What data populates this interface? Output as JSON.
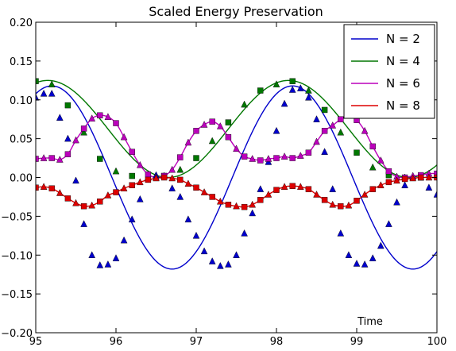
{
  "chart_data": {
    "type": "line",
    "title": "Scaled Energy Preservation",
    "xlabel": "Time",
    "ylabel": "",
    "xlim": [
      95,
      100
    ],
    "ylim": [
      -0.2,
      0.2
    ],
    "xticks": [
      "95",
      "96",
      "97",
      "98",
      "99",
      "100"
    ],
    "yticks": [
      "0.20",
      "0.15",
      "0.10",
      "0.05",
      "0.00",
      "−0.05",
      "−0.10",
      "−0.15",
      "−0.20"
    ],
    "grid": false,
    "legend_position": "top-right",
    "legend": [
      "N = 2",
      "N = 4",
      "N = 6",
      "N = 8"
    ],
    "series": [
      {
        "name": "N = 2",
        "color": "#0000cc",
        "marker": "triangle",
        "curve": {
          "formula": "amp*cos(2*pi*(t-phase)/period)",
          "amp": 0.118,
          "period": 3.0,
          "phase": 95.2
        },
        "marker_points": [
          [
            95.0,
            0.103
          ],
          [
            95.1,
            0.108
          ],
          [
            95.2,
            0.108
          ],
          [
            95.3,
            0.077
          ],
          [
            95.4,
            0.05
          ],
          [
            95.5,
            -0.004
          ],
          [
            95.6,
            -0.06
          ],
          [
            95.7,
            -0.1
          ],
          [
            95.8,
            -0.113
          ],
          [
            95.9,
            -0.112
          ],
          [
            96.0,
            -0.104
          ],
          [
            96.1,
            -0.081
          ],
          [
            96.2,
            -0.054
          ],
          [
            96.3,
            -0.028
          ],
          [
            96.4,
            0.0
          ],
          [
            96.5,
            0.003
          ],
          [
            96.6,
            0.002
          ],
          [
            96.7,
            -0.014
          ],
          [
            96.8,
            -0.025
          ],
          [
            96.9,
            -0.054
          ],
          [
            97.0,
            -0.075
          ],
          [
            97.1,
            -0.095
          ],
          [
            97.2,
            -0.108
          ],
          [
            97.3,
            -0.114
          ],
          [
            97.4,
            -0.112
          ],
          [
            97.5,
            -0.1
          ],
          [
            97.6,
            -0.072
          ],
          [
            97.7,
            -0.046
          ],
          [
            97.8,
            -0.015
          ],
          [
            97.9,
            0.02
          ],
          [
            98.0,
            0.06
          ],
          [
            98.1,
            0.095
          ],
          [
            98.2,
            0.113
          ],
          [
            98.3,
            0.115
          ],
          [
            98.4,
            0.103
          ],
          [
            98.5,
            0.075
          ],
          [
            98.6,
            0.033
          ],
          [
            98.7,
            -0.015
          ],
          [
            98.8,
            -0.072
          ],
          [
            98.9,
            -0.1
          ],
          [
            99.0,
            -0.111
          ],
          [
            99.1,
            -0.112
          ],
          [
            99.2,
            -0.104
          ],
          [
            99.3,
            -0.088
          ],
          [
            99.4,
            -0.06
          ],
          [
            99.5,
            -0.032
          ],
          [
            99.6,
            -0.01
          ],
          [
            99.7,
            0.001
          ],
          [
            99.8,
            0.0
          ],
          [
            99.9,
            -0.013
          ],
          [
            100.0,
            -0.022
          ]
        ]
      },
      {
        "name": "N = 4",
        "color": "#007700",
        "marker": "square",
        "curve": {
          "formula": "(amp/2)*(1+cos(2*pi*(t-phase)/period))",
          "amp": 0.125,
          "period": 3.0,
          "phase": 95.2
        },
        "marker_points": [
          [
            95.0,
            0.124
          ],
          [
            95.2,
            0.12
          ],
          [
            95.4,
            0.093
          ],
          [
            95.6,
            0.058
          ],
          [
            95.8,
            0.024
          ],
          [
            96.0,
            0.008
          ],
          [
            96.2,
            0.002
          ],
          [
            96.4,
            0.0
          ],
          [
            96.6,
            0.002
          ],
          [
            96.8,
            0.01
          ],
          [
            97.0,
            0.025
          ],
          [
            97.2,
            0.047
          ],
          [
            97.4,
            0.071
          ],
          [
            97.6,
            0.094
          ],
          [
            97.8,
            0.112
          ],
          [
            98.0,
            0.12
          ],
          [
            98.2,
            0.124
          ],
          [
            98.4,
            0.112
          ],
          [
            98.6,
            0.087
          ],
          [
            98.8,
            0.058
          ],
          [
            99.0,
            0.032
          ],
          [
            99.2,
            0.013
          ],
          [
            99.4,
            0.003
          ],
          [
            99.6,
            0.0
          ],
          [
            99.8,
            0.0
          ],
          [
            100.0,
            0.003
          ]
        ]
      },
      {
        "name": "N = 6",
        "color": "#bb00bb",
        "marker": "square",
        "curve": {
          "formula": "amp*sin(pi*(t-95.3)/(0.85*1.5))^2 smoothed",
          "amp": 0.078
        },
        "marker_points": [
          [
            95.0,
            0.024
          ],
          [
            95.1,
            0.025
          ],
          [
            95.2,
            0.025
          ],
          [
            95.3,
            0.023
          ],
          [
            95.4,
            0.03
          ],
          [
            95.5,
            0.048
          ],
          [
            95.6,
            0.063
          ],
          [
            95.7,
            0.076
          ],
          [
            95.8,
            0.08
          ],
          [
            95.9,
            0.078
          ],
          [
            96.0,
            0.07
          ],
          [
            96.1,
            0.052
          ],
          [
            96.2,
            0.033
          ],
          [
            96.3,
            0.016
          ],
          [
            96.4,
            0.004
          ],
          [
            96.5,
            0.0
          ],
          [
            96.6,
            0.002
          ],
          [
            96.7,
            0.01
          ],
          [
            96.8,
            0.026
          ],
          [
            96.9,
            0.045
          ],
          [
            97.0,
            0.06
          ],
          [
            97.1,
            0.068
          ],
          [
            97.2,
            0.072
          ],
          [
            97.3,
            0.066
          ],
          [
            97.4,
            0.052
          ],
          [
            97.5,
            0.037
          ],
          [
            97.6,
            0.027
          ],
          [
            97.7,
            0.024
          ],
          [
            97.8,
            0.022
          ],
          [
            97.9,
            0.024
          ],
          [
            98.0,
            0.025
          ],
          [
            98.1,
            0.027
          ],
          [
            98.2,
            0.025
          ],
          [
            98.3,
            0.028
          ],
          [
            98.4,
            0.032
          ],
          [
            98.5,
            0.046
          ],
          [
            98.6,
            0.06
          ],
          [
            98.7,
            0.067
          ],
          [
            98.8,
            0.075
          ],
          [
            98.9,
            0.08
          ],
          [
            99.0,
            0.074
          ],
          [
            99.1,
            0.06
          ],
          [
            99.2,
            0.04
          ],
          [
            99.3,
            0.022
          ],
          [
            99.4,
            0.008
          ],
          [
            99.5,
            0.001
          ],
          [
            99.6,
            0.0
          ],
          [
            99.7,
            0.002
          ],
          [
            99.8,
            0.003
          ],
          [
            99.9,
            0.005
          ],
          [
            100.0,
            0.005
          ]
        ]
      },
      {
        "name": "N = 8",
        "color": "#dd0000",
        "marker": "square",
        "curve": {
          "formula": "-(amp/2)*(1+cos(2*pi*(t-phase)/period)) + small offset",
          "amp": 0.038
        },
        "marker_points": [
          [
            95.0,
            -0.013
          ],
          [
            95.1,
            -0.012
          ],
          [
            95.2,
            -0.014
          ],
          [
            95.3,
            -0.02
          ],
          [
            95.4,
            -0.027
          ],
          [
            95.5,
            -0.033
          ],
          [
            95.6,
            -0.037
          ],
          [
            95.7,
            -0.036
          ],
          [
            95.8,
            -0.031
          ],
          [
            95.9,
            -0.023
          ],
          [
            96.0,
            -0.019
          ],
          [
            96.1,
            -0.014
          ],
          [
            96.2,
            -0.01
          ],
          [
            96.3,
            -0.006
          ],
          [
            96.4,
            -0.003
          ],
          [
            96.5,
            -0.001
          ],
          [
            96.6,
            0.0
          ],
          [
            96.7,
            -0.001
          ],
          [
            96.8,
            -0.003
          ],
          [
            96.9,
            -0.008
          ],
          [
            97.0,
            -0.013
          ],
          [
            97.1,
            -0.019
          ],
          [
            97.2,
            -0.025
          ],
          [
            97.3,
            -0.031
          ],
          [
            97.4,
            -0.035
          ],
          [
            97.5,
            -0.037
          ],
          [
            97.6,
            -0.038
          ],
          [
            97.7,
            -0.035
          ],
          [
            97.8,
            -0.029
          ],
          [
            97.9,
            -0.022
          ],
          [
            98.0,
            -0.016
          ],
          [
            98.1,
            -0.012
          ],
          [
            98.2,
            -0.011
          ],
          [
            98.3,
            -0.012
          ],
          [
            98.4,
            -0.015
          ],
          [
            98.5,
            -0.022
          ],
          [
            98.6,
            -0.029
          ],
          [
            98.7,
            -0.035
          ],
          [
            98.8,
            -0.037
          ],
          [
            98.9,
            -0.036
          ],
          [
            99.0,
            -0.03
          ],
          [
            99.1,
            -0.022
          ],
          [
            99.2,
            -0.015
          ],
          [
            99.3,
            -0.01
          ],
          [
            99.4,
            -0.006
          ],
          [
            99.5,
            -0.004
          ],
          [
            99.6,
            -0.002
          ],
          [
            99.7,
            -0.001
          ],
          [
            99.8,
            0.0
          ],
          [
            99.9,
            0.0
          ],
          [
            100.0,
            0.0
          ]
        ]
      }
    ]
  }
}
